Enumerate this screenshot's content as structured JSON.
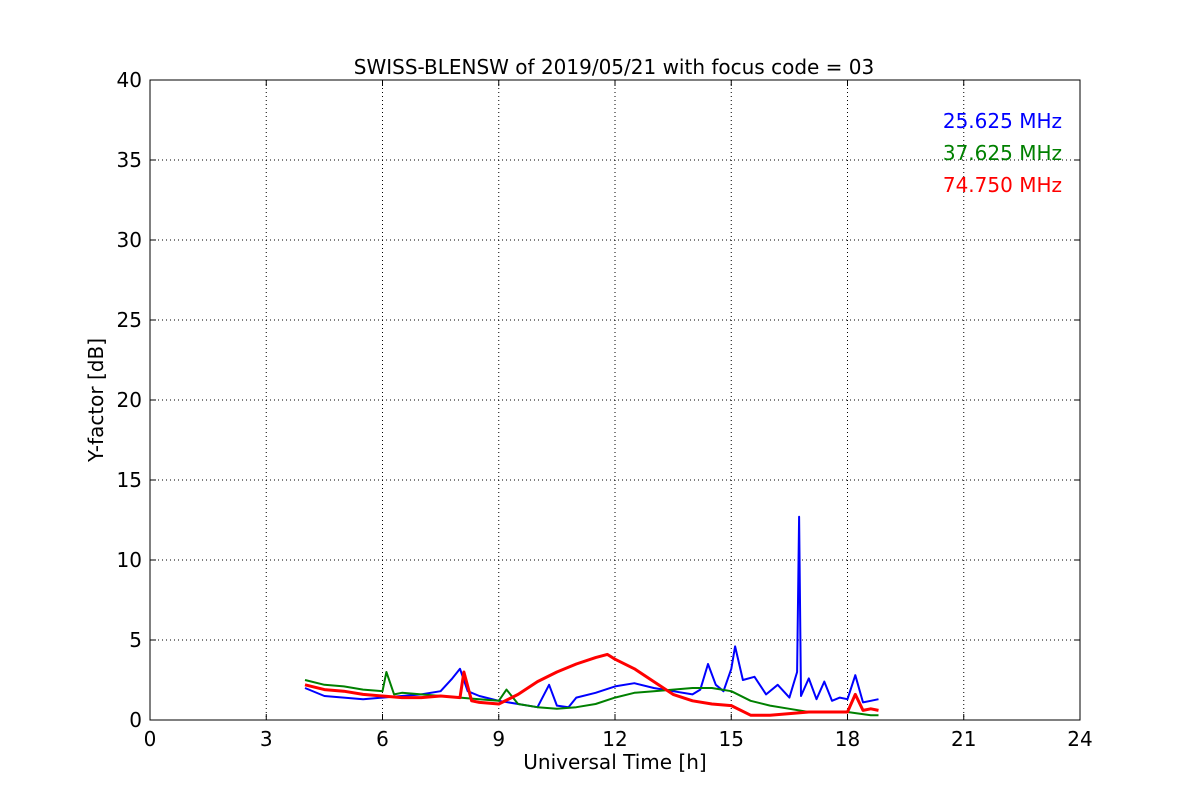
{
  "chart_data": {
    "type": "line",
    "title": "SWISS-BLENSW of 2019/05/21 with focus code = 03",
    "xlabel": "Universal Time [h]",
    "ylabel": "Y-factor [dB]",
    "xlim": [
      0,
      24
    ],
    "ylim": [
      0,
      40
    ],
    "xticks": [
      0,
      3,
      6,
      9,
      12,
      15,
      18,
      21,
      24
    ],
    "yticks": [
      0,
      5,
      10,
      15,
      20,
      25,
      30,
      35,
      40
    ],
    "grid": true,
    "legend_position": "top-right",
    "series": [
      {
        "name": "25.625 MHz",
        "color": "#0000ff",
        "x": [
          4.0,
          4.5,
          5.0,
          5.5,
          6.0,
          6.5,
          7.0,
          7.5,
          7.8,
          8.0,
          8.2,
          8.5,
          9.0,
          9.5,
          10.0,
          10.3,
          10.5,
          10.8,
          11.0,
          11.5,
          12.0,
          12.5,
          13.0,
          13.5,
          14.0,
          14.2,
          14.4,
          14.6,
          14.8,
          15.0,
          15.1,
          15.3,
          15.6,
          15.9,
          16.2,
          16.5,
          16.7,
          16.75,
          16.8,
          17.0,
          17.2,
          17.4,
          17.6,
          17.8,
          18.0,
          18.2,
          18.4,
          18.6,
          18.8
        ],
        "y": [
          2.0,
          1.5,
          1.4,
          1.3,
          1.4,
          1.5,
          1.6,
          1.8,
          2.6,
          3.2,
          1.8,
          1.5,
          1.2,
          1.0,
          0.8,
          2.2,
          0.9,
          0.8,
          1.4,
          1.7,
          2.1,
          2.3,
          2.0,
          1.8,
          1.6,
          1.9,
          3.5,
          2.2,
          1.8,
          3.2,
          4.6,
          2.5,
          2.7,
          1.6,
          2.2,
          1.4,
          3.0,
          12.7,
          1.5,
          2.6,
          1.3,
          2.4,
          1.2,
          1.4,
          1.3,
          2.8,
          1.1,
          1.2,
          1.3
        ]
      },
      {
        "name": "37.625 MHz",
        "color": "#008000",
        "x": [
          4.0,
          4.5,
          5.0,
          5.5,
          6.0,
          6.1,
          6.3,
          6.5,
          7.0,
          7.5,
          8.0,
          8.5,
          9.0,
          9.2,
          9.5,
          10.0,
          10.5,
          11.0,
          11.5,
          12.0,
          12.5,
          13.0,
          13.5,
          14.0,
          14.5,
          15.0,
          15.5,
          16.0,
          16.5,
          17.0,
          17.5,
          18.0,
          18.3,
          18.6,
          18.8
        ],
        "y": [
          2.5,
          2.2,
          2.1,
          1.9,
          1.8,
          3.0,
          1.6,
          1.7,
          1.6,
          1.5,
          1.4,
          1.3,
          1.2,
          1.9,
          1.0,
          0.8,
          0.7,
          0.8,
          1.0,
          1.4,
          1.7,
          1.8,
          1.9,
          2.0,
          2.0,
          1.8,
          1.2,
          0.9,
          0.7,
          0.5,
          0.5,
          0.5,
          0.4,
          0.3,
          0.3
        ]
      },
      {
        "name": "74.750 MHz",
        "color": "#ff0000",
        "x": [
          4.0,
          4.5,
          5.0,
          5.5,
          6.0,
          6.5,
          7.0,
          7.5,
          8.0,
          8.1,
          8.3,
          8.5,
          9.0,
          9.5,
          10.0,
          10.5,
          11.0,
          11.5,
          11.8,
          12.0,
          12.5,
          13.0,
          13.5,
          14.0,
          14.5,
          15.0,
          15.5,
          16.0,
          16.5,
          17.0,
          17.5,
          18.0,
          18.2,
          18.4,
          18.6,
          18.8
        ],
        "y": [
          2.2,
          1.9,
          1.8,
          1.6,
          1.5,
          1.4,
          1.4,
          1.5,
          1.4,
          3.0,
          1.2,
          1.1,
          1.0,
          1.6,
          2.4,
          3.0,
          3.5,
          3.9,
          4.1,
          3.8,
          3.2,
          2.4,
          1.6,
          1.2,
          1.0,
          0.9,
          0.3,
          0.3,
          0.4,
          0.5,
          0.5,
          0.5,
          1.6,
          0.6,
          0.7,
          0.6
        ]
      }
    ]
  }
}
